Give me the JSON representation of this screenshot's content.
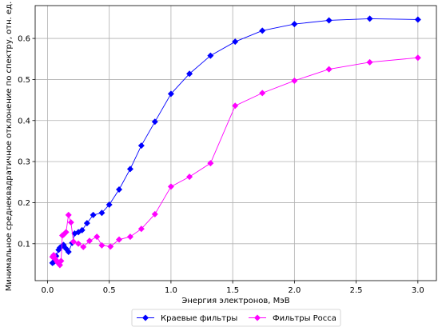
{
  "chart_data": {
    "type": "line",
    "xlabel": "Энергия электронов, МэВ",
    "ylabel": "Минимальное среднеквадратичное отклонение по спектру, отн. ед.",
    "xlim": [
      -0.1,
      3.15
    ],
    "ylim": [
      0.01,
      0.68
    ],
    "xticks": [
      0.0,
      0.5,
      1.0,
      1.5,
      2.0,
      2.5,
      3.0
    ],
    "xtick_labels": [
      "0.0",
      "0.5",
      "1.0",
      "1.5",
      "2.0",
      "2.5",
      "3.0"
    ],
    "yticks": [
      0.1,
      0.2,
      0.3,
      0.4,
      0.5,
      0.6
    ],
    "ytick_labels": [
      "0.1",
      "0.2",
      "0.3",
      "0.4",
      "0.5",
      "0.6"
    ],
    "grid": true,
    "legend_position": "bottom-center, outside plot",
    "series": [
      {
        "name": "Краевые фильтры",
        "color": "#0000ff",
        "marker": "diamond",
        "x": [
          0.04,
          0.05,
          0.07,
          0.09,
          0.1,
          0.12,
          0.13,
          0.15,
          0.17,
          0.2,
          0.22,
          0.25,
          0.28,
          0.32,
          0.37,
          0.44,
          0.5,
          0.58,
          0.67,
          0.76,
          0.87,
          1.0,
          1.15,
          1.32,
          1.52,
          1.74,
          2.0,
          2.28,
          2.61,
          3.0
        ],
        "y": [
          0.053,
          0.055,
          0.07,
          0.085,
          0.09,
          0.095,
          0.097,
          0.088,
          0.08,
          0.102,
          0.125,
          0.128,
          0.133,
          0.15,
          0.17,
          0.175,
          0.195,
          0.232,
          0.282,
          0.339,
          0.397,
          0.465,
          0.514,
          0.558,
          0.592,
          0.619,
          0.635,
          0.644,
          0.648,
          0.646
        ]
      },
      {
        "name": "Фильтры Росса",
        "color": "#ff00ff",
        "marker": "diamond",
        "x": [
          0.04,
          0.05,
          0.06,
          0.07,
          0.08,
          0.09,
          0.1,
          0.11,
          0.12,
          0.13,
          0.15,
          0.17,
          0.19,
          0.21,
          0.25,
          0.29,
          0.34,
          0.4,
          0.44,
          0.51,
          0.58,
          0.67,
          0.76,
          0.87,
          1.0,
          1.15,
          1.32,
          1.52,
          1.74,
          2.0,
          2.28,
          2.61,
          3.0
        ],
        "y": [
          0.068,
          0.072,
          0.065,
          0.06,
          0.055,
          0.052,
          0.048,
          0.058,
          0.12,
          0.122,
          0.128,
          0.17,
          0.152,
          0.105,
          0.1,
          0.092,
          0.107,
          0.117,
          0.096,
          0.093,
          0.11,
          0.117,
          0.136,
          0.172,
          0.239,
          0.263,
          0.296,
          0.436,
          0.467,
          0.497,
          0.525,
          0.542,
          0.553
        ]
      }
    ]
  }
}
